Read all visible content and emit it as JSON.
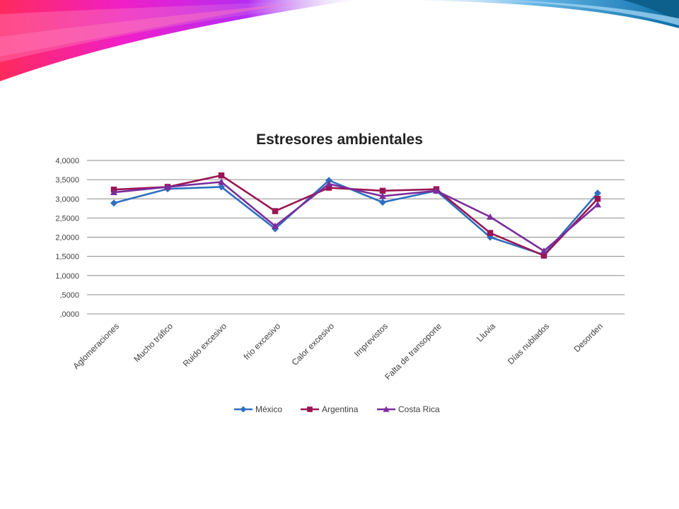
{
  "slide": {
    "accent_colors": [
      "#ff1f6e",
      "#e81ee0",
      "#b31ef0",
      "#6c6cf0",
      "#1aa6d8",
      "#0a7fb0"
    ]
  },
  "chart_data": {
    "type": "line",
    "title": "Estresores ambientales",
    "xlabel": "",
    "ylabel": "",
    "ylim": [
      0,
      4
    ],
    "y_ticks": [
      0,
      0.5,
      1,
      1.5,
      2,
      2.5,
      3,
      3.5,
      4
    ],
    "y_tick_labels": [
      ",0000",
      ",5000",
      "1,0000",
      "1,5000",
      "2,0000",
      "2,5000",
      "3,0000",
      "3,5000",
      "4,0000"
    ],
    "grid": true,
    "legend_position": "bottom",
    "categories": [
      "Aglomeraciones",
      "Mucho tráfico",
      "Ruido excesivo",
      "frío excesivo",
      "Calor excesivo",
      "Imprevistos",
      "Falta de transoporte",
      "Lluvia",
      "Días nublados",
      "Desorden"
    ],
    "series": [
      {
        "name": "México",
        "color": "#2e6fc0",
        "marker": "diamond",
        "values": [
          2.89,
          3.26,
          3.31,
          2.22,
          3.48,
          2.91,
          3.21,
          2.0,
          1.54,
          3.15
        ]
      },
      {
        "name": "Argentina",
        "color": "#9a1553",
        "marker": "square",
        "values": [
          3.24,
          3.31,
          3.61,
          2.68,
          3.29,
          3.21,
          3.25,
          2.11,
          1.52,
          3.0
        ]
      },
      {
        "name": "Costa Rica",
        "color": "#7b2d9c",
        "marker": "triangle",
        "values": [
          3.17,
          3.31,
          3.44,
          2.29,
          3.39,
          3.07,
          3.21,
          2.53,
          1.64,
          2.85
        ]
      }
    ]
  }
}
